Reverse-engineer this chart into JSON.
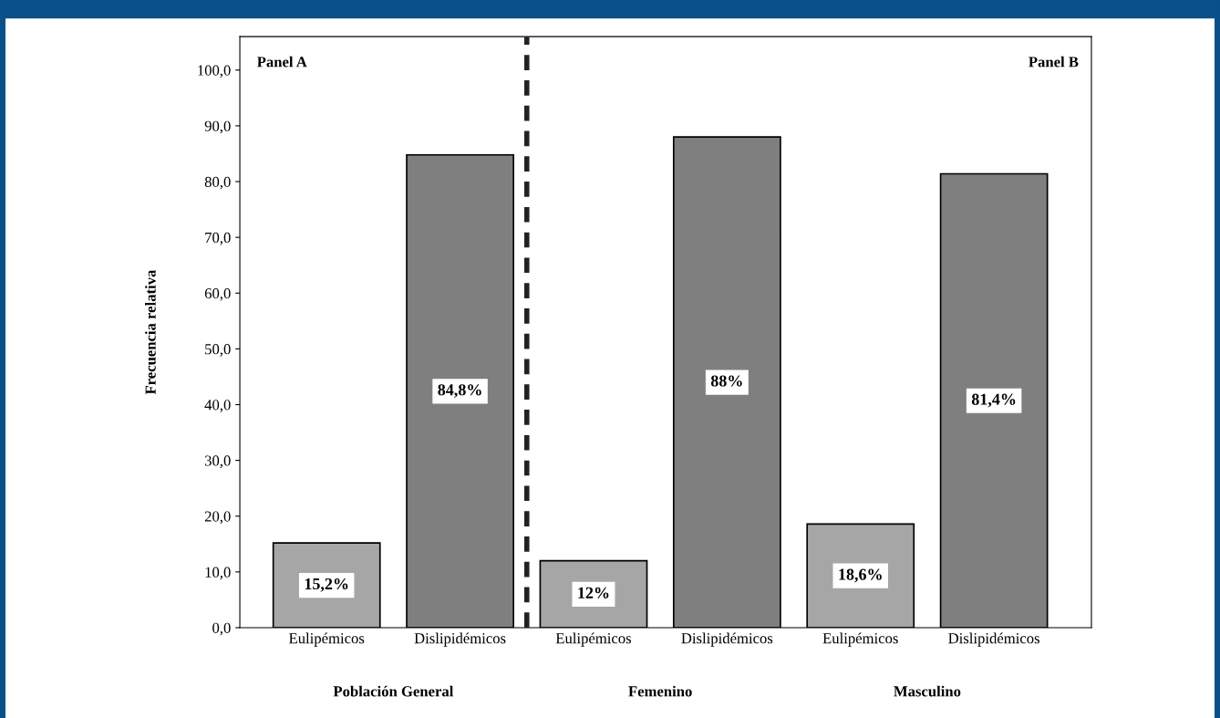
{
  "chart_data": {
    "type": "bar",
    "ylabel": "Frecuencia relativa",
    "categories": [
      "Eulipémicos",
      "Dislipidémicos",
      "Eulipémicos",
      "Dislipidémicos",
      "Eulipémicos",
      "Dislipidémicos"
    ],
    "values": [
      15.2,
      84.8,
      12,
      88,
      18.6,
      81.4
    ],
    "colors": [
      "#a6a6a6",
      "#7f7f7f",
      "#a6a6a6",
      "#7f7f7f",
      "#a6a6a6",
      "#7f7f7f"
    ],
    "value_labels": [
      "15,2%",
      "84,8%",
      "12%",
      "88%",
      "18,6%",
      "81,4%"
    ],
    "ylim": [
      0,
      106
    ],
    "yticks": [
      {
        "value": 0,
        "label": "0,0"
      },
      {
        "value": 10,
        "label": "10,0"
      },
      {
        "value": 20,
        "label": "20,0"
      },
      {
        "value": 30,
        "label": "30,0"
      },
      {
        "value": 40,
        "label": "40,0"
      },
      {
        "value": 50,
        "label": "50,0"
      },
      {
        "value": 60,
        "label": "60,0"
      },
      {
        "value": 70,
        "label": "70,0"
      },
      {
        "value": 80,
        "label": "80,0"
      },
      {
        "value": 90,
        "label": "90,0"
      },
      {
        "value": 100,
        "label": "100,0"
      }
    ],
    "annotations": [
      "Panel A",
      "Panel B",
      "Población General",
      "Femenino",
      "Masculino"
    ],
    "grid": false,
    "legend": false
  }
}
